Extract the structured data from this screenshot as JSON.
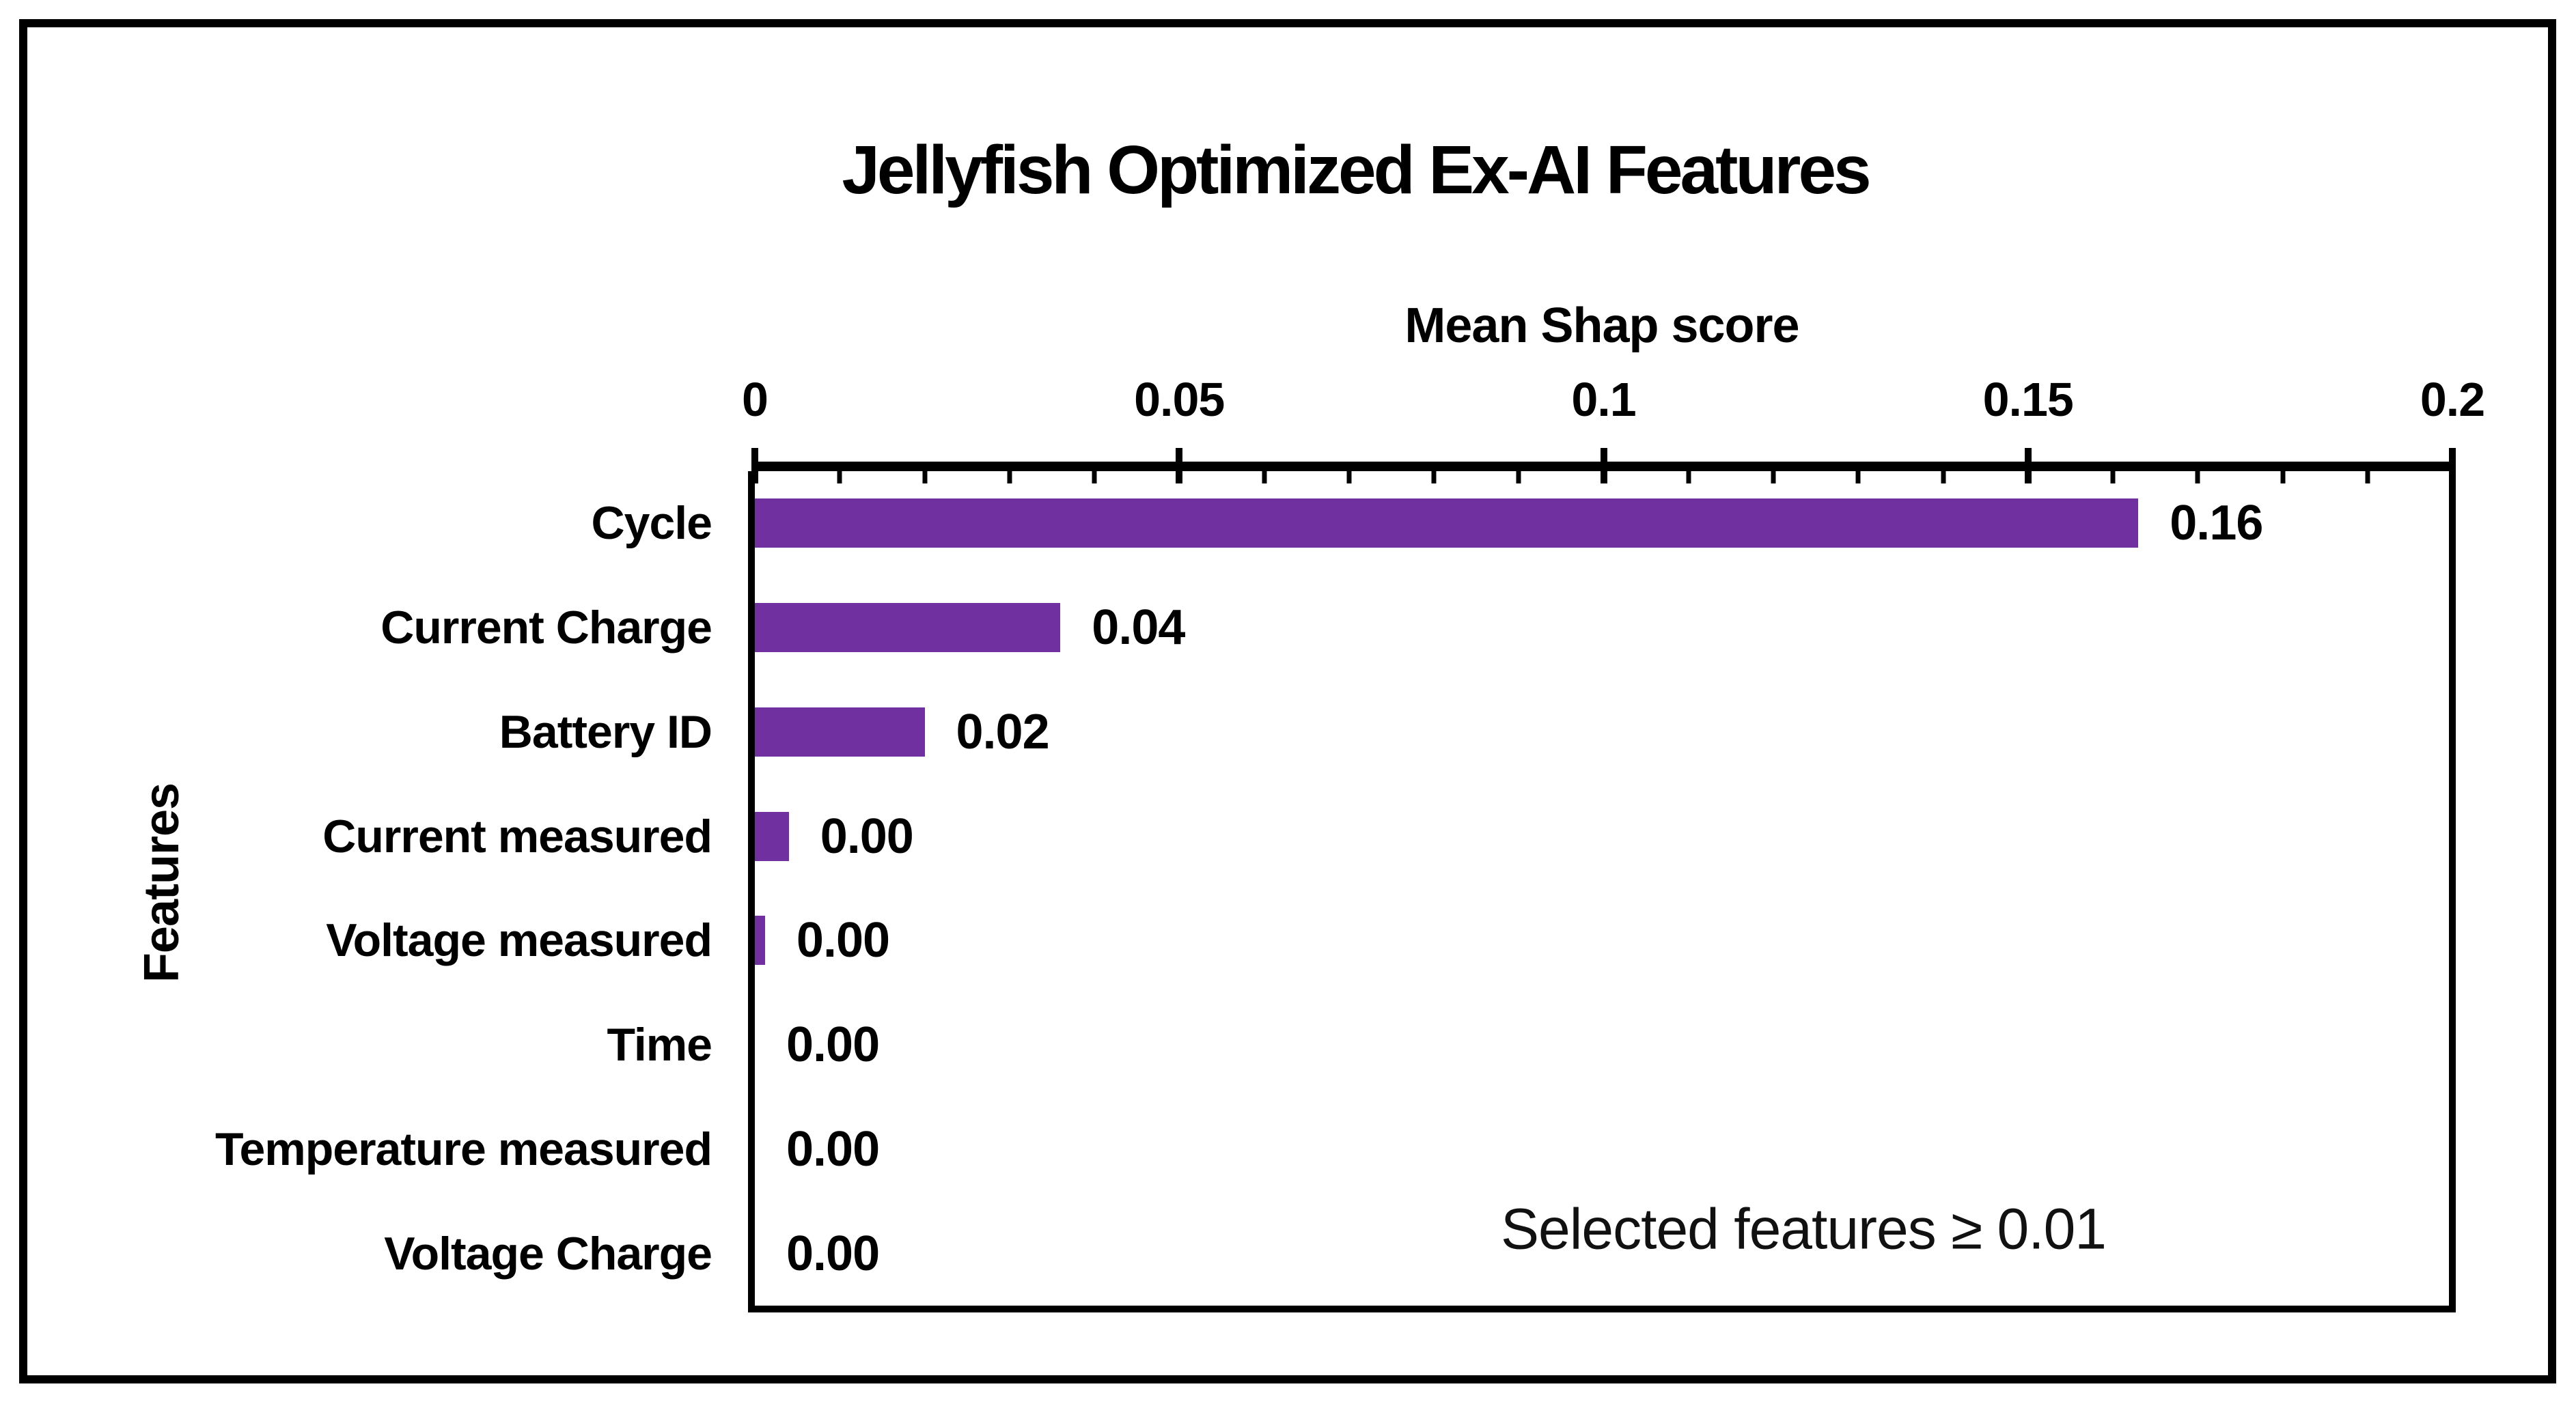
{
  "chart_data": {
    "type": "bar",
    "orientation": "horizontal",
    "title": "Jellyfish Optimized Ex-AI Features",
    "xlabel": "Mean Shap score",
    "ylabel": "Features",
    "categories": [
      "Cycle",
      "Current Charge",
      "Battery ID",
      "Current measured",
      "Voltage measured",
      "Time",
      "Temperature measured",
      "Voltage Charge"
    ],
    "values": [
      0.163,
      0.036,
      0.02,
      0.004,
      0.0012,
      0,
      0,
      0
    ],
    "value_labels": [
      "0.16",
      "0.04",
      "0.02",
      "0.00",
      "0.00",
      "0.00",
      "0.00",
      "0.00"
    ],
    "xlim": [
      0,
      0.2
    ],
    "x_tick_values": [
      0,
      0.05,
      0.1,
      0.15,
      0.2
    ],
    "x_tick_labels": [
      "0",
      "0.05",
      "0.1",
      "0.15",
      "0.2"
    ],
    "minor_tick_interval": 0.01,
    "grid": false,
    "legend": "none",
    "annotation": "Selected features ≥ 0.01",
    "bar_color": "#7030A0",
    "axis_color": "#000000",
    "text_color": "#000000"
  }
}
